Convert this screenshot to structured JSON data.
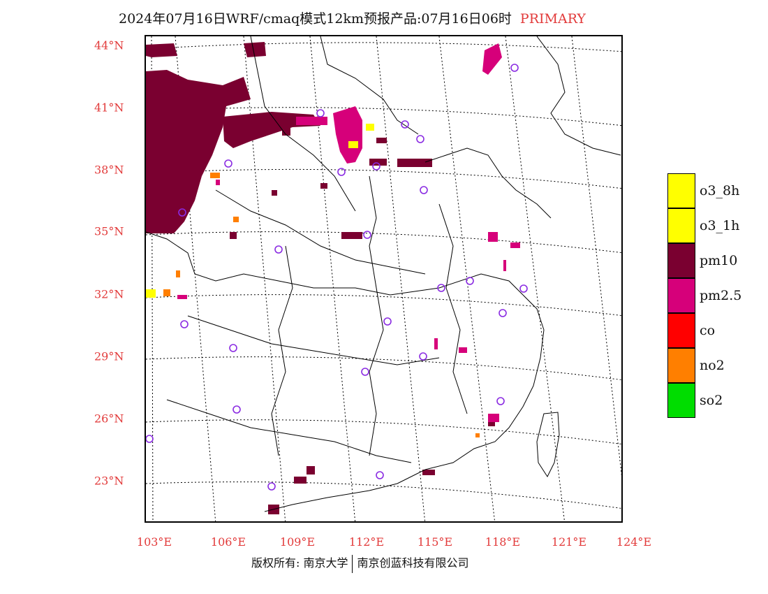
{
  "title": {
    "text": "2024年07月16日WRF/cmaq模式12km预报产品:07月16日06时",
    "tag": "PRIMARY"
  },
  "map": {
    "lat_labels": [
      "44°N",
      "41°N",
      "38°N",
      "35°N",
      "32°N",
      "29°N",
      "26°N",
      "23°N"
    ],
    "lon_labels": [
      "103°E",
      "106°E",
      "109°E",
      "112°E",
      "115°E",
      "118°E",
      "121°E",
      "124°E"
    ]
  },
  "legend": {
    "items": [
      {
        "label": "o3_8h",
        "color": "#ffff00"
      },
      {
        "label": "o3_1h",
        "color": "#ffff00"
      },
      {
        "label": "pm10",
        "color": "#7a0030"
      },
      {
        "label": "pm2.5",
        "color": "#d6007a"
      },
      {
        "label": "co",
        "color": "#ff0000"
      },
      {
        "label": "no2",
        "color": "#ff7f00"
      },
      {
        "label": "so2",
        "color": "#00dd00"
      }
    ]
  },
  "footer": {
    "left": "版权所有: 南京大学",
    "right": "南京创蓝科技有限公司"
  },
  "colors": {
    "pm10": "#7a0030",
    "pm25": "#d6007a",
    "o3": "#ffff00",
    "no2": "#ff7f00",
    "station": "#8a2be2",
    "axis_label": "#e23a3a"
  }
}
